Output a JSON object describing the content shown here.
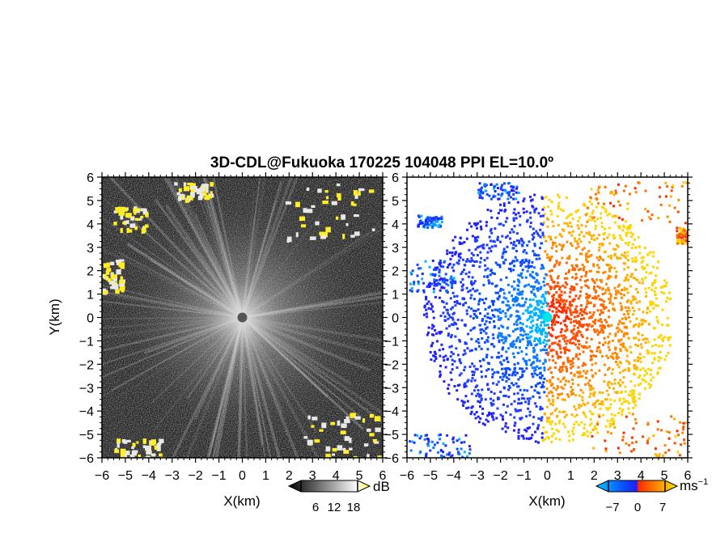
{
  "title": "3D-CDL@Fukuoka 170225 104048 PPI EL=10.0º",
  "axes": {
    "x_label": "X(km)",
    "y_label": "Y(km)",
    "range": [
      -6,
      6
    ],
    "ticks": [
      "-6",
      "-5",
      "-4",
      "-3",
      "-2",
      "-1",
      "0",
      "1",
      "2",
      "3",
      "4",
      "5",
      "6"
    ]
  },
  "chart_data": [
    {
      "type": "heatmap",
      "panel": "left",
      "quantity": "SNR",
      "title": "",
      "xlabel": "X(km)",
      "ylabel": "Y(km)",
      "xlim": [
        -6,
        6
      ],
      "ylim": [
        -6,
        6
      ],
      "colorbar": {
        "unit": "dB",
        "ticks": [
          6,
          12,
          18
        ],
        "range": [
          0,
          20
        ],
        "colors": [
          "#000000",
          "#ffffff",
          "#ffff33"
        ]
      },
      "center": [
        0,
        0
      ],
      "note_strong_returns": [
        "NE rim",
        "SW rim",
        "SE rim",
        "W edge"
      ]
    },
    {
      "type": "heatmap",
      "panel": "right",
      "quantity": "radial velocity",
      "title": "",
      "xlabel": "X(km)",
      "ylabel": "",
      "xlim": [
        -6,
        6
      ],
      "ylim": [
        -6,
        6
      ],
      "colorbar": {
        "unit": "ms",
        "unit_exp": "−1",
        "ticks": [
          -7,
          0,
          7
        ],
        "range": [
          -9,
          9
        ],
        "colors": [
          "#00c8ff",
          "#0a4bff",
          "#2020ff",
          "#ff2a00",
          "#ff8a00",
          "#ffe600"
        ]
      },
      "center": [
        0,
        0
      ],
      "center_marker_color": "#00e5e5"
    }
  ],
  "colors": {
    "frame": "#000000",
    "background": "#ffffff"
  },
  "colorbar_left": {
    "unit": "dB",
    "labels": [
      "6",
      "12",
      "18"
    ]
  },
  "colorbar_right": {
    "unit": "ms",
    "unit_exp": "−1",
    "labels": [
      "−7",
      "0",
      "7"
    ]
  }
}
